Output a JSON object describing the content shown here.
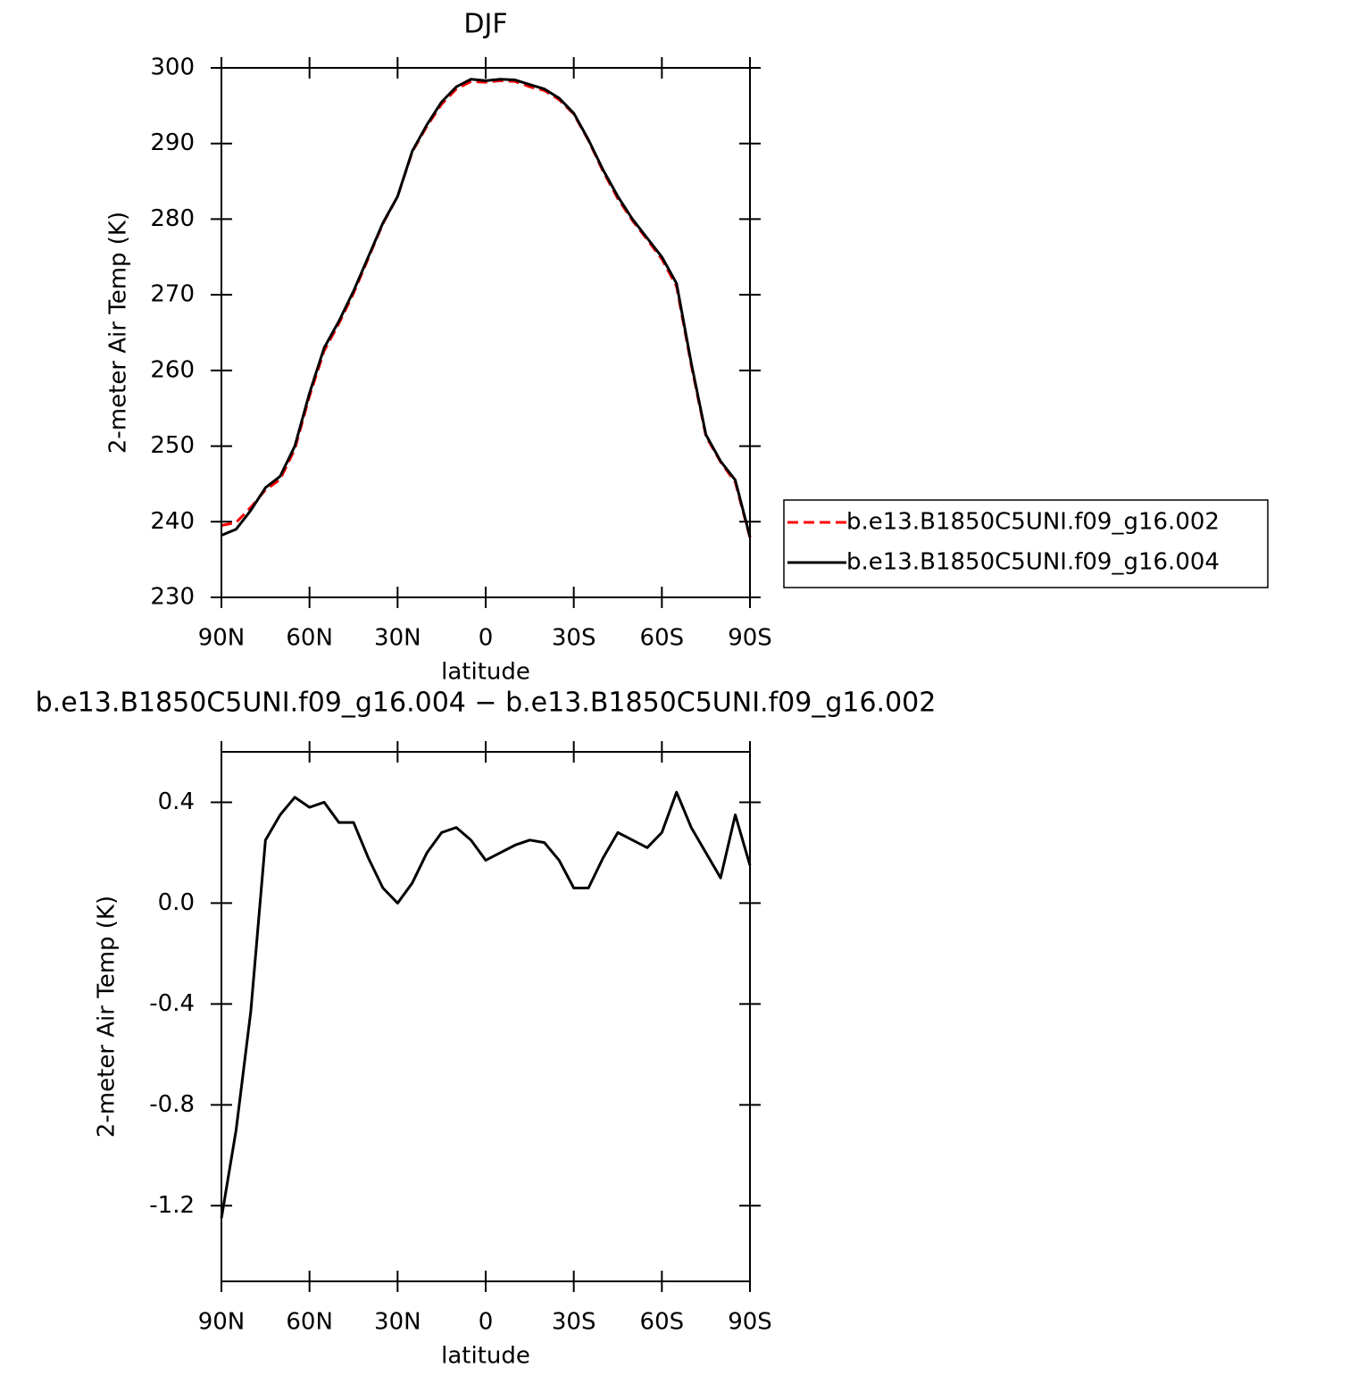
{
  "chart_data": [
    {
      "type": "line",
      "title": "DJF",
      "ylabel": "2-meter Air Temp (K)",
      "xlabel": "latitude",
      "x": [
        90,
        85,
        80,
        75,
        70,
        65,
        60,
        55,
        50,
        45,
        40,
        35,
        30,
        25,
        20,
        15,
        10,
        5,
        0,
        -5,
        -10,
        -15,
        -20,
        -25,
        -30,
        -35,
        -40,
        -45,
        -50,
        -55,
        -60,
        -65,
        -70,
        -75,
        -80,
        -85,
        -90
      ],
      "xlim": [
        90,
        -90
      ],
      "xticks": [
        {
          "value": 90,
          "label": "90N"
        },
        {
          "value": 60,
          "label": "60N"
        },
        {
          "value": 30,
          "label": "30N"
        },
        0,
        {
          "value": -30,
          "label": "30S"
        },
        {
          "value": -60,
          "label": "60S"
        },
        {
          "value": -90,
          "label": "90S"
        }
      ],
      "ylim": [
        230,
        300
      ],
      "yticks": [
        230,
        240,
        250,
        260,
        270,
        280,
        290,
        300
      ],
      "legend": "outside-right",
      "series": [
        {
          "name": "b.e13.B1850C5UNI.f09_g16.002",
          "color": "#ff0000",
          "dashed": true,
          "values": [
            239.5,
            239.9,
            241.9,
            244.2,
            245.6,
            249.6,
            256.6,
            262.6,
            266.2,
            270.2,
            274.8,
            279.4,
            283,
            288.9,
            292.3,
            295.2,
            297.2,
            298.2,
            298.1,
            298.3,
            298.2,
            297.5,
            297,
            295.8,
            293.9,
            290.4,
            286.3,
            282.7,
            279.8,
            277.3,
            274.7,
            271.1,
            260.7,
            251.3,
            247.9,
            245.2,
            237.9
          ]
        },
        {
          "name": "b.e13.B1850C5UNI.f09_g16.004",
          "color": "#000000",
          "dashed": false,
          "values": [
            238.2,
            239,
            241.5,
            244.5,
            246,
            250,
            257,
            263,
            266.5,
            270.5,
            275,
            279.5,
            283,
            289,
            292.5,
            295.5,
            297.5,
            298.5,
            298.3,
            298.5,
            298.4,
            297.8,
            297.2,
            296,
            294,
            290.5,
            286.5,
            283,
            280,
            277.5,
            275,
            271.5,
            261,
            251.5,
            248,
            245.5,
            238
          ]
        }
      ]
    },
    {
      "type": "line",
      "title": "b.e13.B1850C5UNI.f09_g16.004 − b.e13.B1850C5UNI.f09_g16.002",
      "ylabel": "2-meter Air Temp (K)",
      "xlabel": "latitude",
      "x": [
        90,
        85,
        80,
        75,
        70,
        65,
        60,
        55,
        50,
        45,
        40,
        35,
        30,
        25,
        20,
        15,
        10,
        5,
        0,
        -5,
        -10,
        -15,
        -20,
        -25,
        -30,
        -35,
        -40,
        -45,
        -50,
        -55,
        -60,
        -65,
        -70,
        -75,
        -80,
        -85,
        -90
      ],
      "xlim": [
        90,
        -90
      ],
      "xticks": [
        {
          "value": 90,
          "label": "90N"
        },
        {
          "value": 60,
          "label": "60N"
        },
        {
          "value": 30,
          "label": "30N"
        },
        0,
        {
          "value": -30,
          "label": "30S"
        },
        {
          "value": -60,
          "label": "60S"
        },
        {
          "value": -90,
          "label": "90S"
        }
      ],
      "ylim": [
        -1.5,
        0.6
      ],
      "yticks": [
        -1.2,
        -0.8,
        -0.4,
        {
          "value": 0,
          "label": "0.0"
        },
        0.4
      ],
      "series": [
        {
          "color": "#000000",
          "dashed": false,
          "values": [
            -1.25,
            -0.9,
            -0.43,
            0.25,
            0.35,
            0.42,
            0.38,
            0.4,
            0.32,
            0.32,
            0.18,
            0.06,
            0.0,
            0.08,
            0.2,
            0.28,
            0.3,
            0.25,
            0.17,
            0.2,
            0.23,
            0.25,
            0.24,
            0.17,
            0.06,
            0.06,
            0.18,
            0.28,
            0.25,
            0.22,
            0.28,
            0.44,
            0.3,
            0.2,
            0.1,
            0.35,
            0.15
          ]
        }
      ]
    }
  ]
}
